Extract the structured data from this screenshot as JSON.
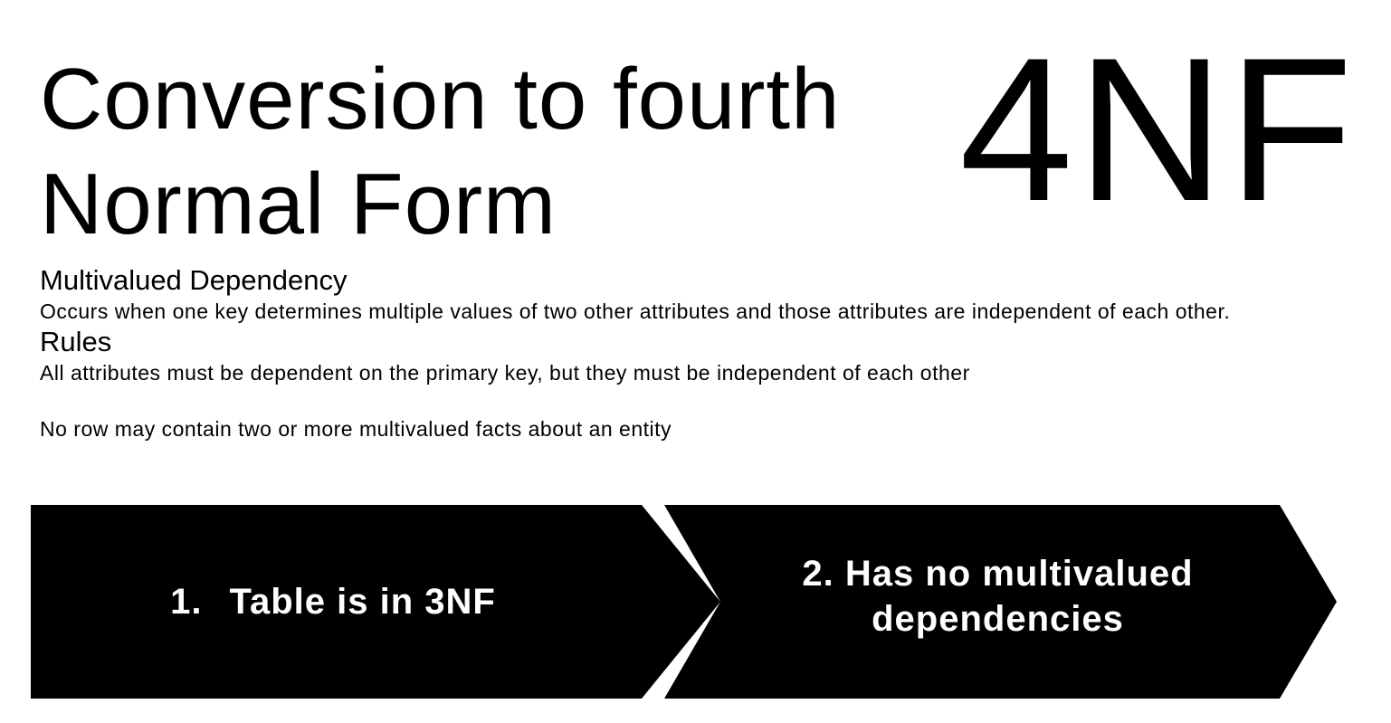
{
  "slide": {
    "title": "Conversion to fourth\nNormal Form",
    "badge": "4NF"
  },
  "sections": {
    "mvd_heading": "Multivalued Dependency",
    "mvd_text": "Occurs when one key determines multiple values of two other attributes and those attributes are independent of each other.",
    "rules_heading": "Rules",
    "rule_1": "All attributes must be dependent on the primary key, but they must be independent of each other",
    "rule_2": "No row may contain two or more multivalued facts about an entity"
  },
  "steps": [
    {
      "number": "1.",
      "text": "Table is in 3NF"
    },
    {
      "number": "2.",
      "text": "Has no multivalued\ndependencies"
    }
  ]
}
